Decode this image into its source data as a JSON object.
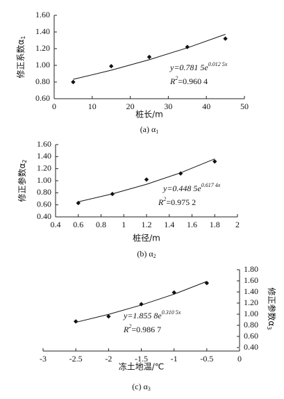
{
  "chart_data": [
    {
      "type": "scatter",
      "xlabel": "桩长/m",
      "ylabel": "修正系数α",
      "ylabel_sub": "1",
      "caption": "(a) α",
      "caption_sub": "1",
      "xlim": [
        0,
        50
      ],
      "xticks": [
        0,
        10,
        20,
        30,
        40,
        50
      ],
      "ylim": [
        0.6,
        1.6
      ],
      "yticks": [
        {
          "value": 0.6,
          "label": "0.60"
        },
        {
          "value": 0.8,
          "label": "0.80"
        },
        {
          "value": 1.0,
          "label": "1.00"
        },
        {
          "value": 1.2,
          "label": "1.20"
        },
        {
          "value": 1.4,
          "label": "1.40"
        },
        {
          "value": 1.6,
          "label": "1.60"
        }
      ],
      "y_axis_side": "left",
      "equation_base": "y=0.781 5e",
      "equation_exponent": "0.012 5x",
      "r2_symbol": "R",
      "r2_exponent": "2",
      "r2_value": "=0.960 4",
      "series": [
        {
          "marker": "diamond",
          "color": "#111111",
          "x": [
            5,
            15,
            25,
            35,
            45
          ],
          "values": [
            0.8,
            0.99,
            1.1,
            1.22,
            1.32
          ]
        },
        {
          "marker": "line",
          "color": "#111111",
          "x": [
            5,
            15,
            25,
            35,
            45
          ],
          "values": [
            0.832,
            0.942,
            1.068,
            1.21,
            1.372
          ]
        }
      ]
    },
    {
      "type": "scatter",
      "xlabel": "桩径/m",
      "ylabel": "修正参数α",
      "ylabel_sub": "2",
      "caption": "(b) α",
      "caption_sub": "2",
      "xlim": [
        0.4,
        2
      ],
      "xticks": [
        0.4,
        0.6,
        0.8,
        1,
        1.2,
        1.4,
        1.6,
        1.8,
        2
      ],
      "ylim": [
        0.4,
        1.6
      ],
      "yticks": [
        {
          "value": 0.4,
          "label": "0.40"
        },
        {
          "value": 0.6,
          "label": "0.60"
        },
        {
          "value": 0.8,
          "label": "0.80"
        },
        {
          "value": 1.0,
          "label": "1.00"
        },
        {
          "value": 1.2,
          "label": "1.20"
        },
        {
          "value": 1.4,
          "label": "1.40"
        },
        {
          "value": 1.6,
          "label": "1.60"
        }
      ],
      "y_axis_side": "left",
      "equation_base": "y=0.448 5e",
      "equation_exponent": "0.617 4x",
      "r2_symbol": "R",
      "r2_exponent": "2",
      "r2_value": "=0.975 2",
      "series": [
        {
          "marker": "diamond",
          "color": "#111111",
          "x": [
            0.6,
            0.9,
            1.2,
            1.5,
            1.8
          ],
          "values": [
            0.63,
            0.78,
            1.02,
            1.12,
            1.32
          ]
        },
        {
          "marker": "line",
          "color": "#111111",
          "x": [
            0.6,
            0.9,
            1.2,
            1.5,
            1.8
          ],
          "values": [
            0.65,
            0.782,
            0.941,
            1.132,
            1.363
          ]
        }
      ]
    },
    {
      "type": "scatter",
      "xlabel": "冻土地温/℃",
      "ylabel": "修正参数α",
      "ylabel_sub": "3",
      "caption": "(c) α",
      "caption_sub": "3",
      "xlim": [
        -3,
        0
      ],
      "xticks": [
        -3,
        -2.5,
        -2,
        -1.5,
        -1,
        -0.5,
        0
      ],
      "ylim": [
        0.4,
        1.8
      ],
      "yticks": [
        {
          "value": 0.4,
          "label": "0.40"
        },
        {
          "value": 0.6,
          "label": "0.60"
        },
        {
          "value": 0.8,
          "label": "0.80"
        },
        {
          "value": 1.0,
          "label": "1.00"
        },
        {
          "value": 1.2,
          "label": "1.20"
        },
        {
          "value": 1.4,
          "label": "1.40"
        },
        {
          "value": 1.6,
          "label": "1.60"
        },
        {
          "value": 1.8,
          "label": "1.80"
        }
      ],
      "y_axis_side": "right",
      "equation_base": "y=1.855 8e",
      "equation_exponent": "0.310 5x",
      "r2_symbol": "R",
      "r2_exponent": "2",
      "r2_value": "=0.986 7",
      "series": [
        {
          "marker": "diamond",
          "color": "#111111",
          "x": [
            -2.5,
            -2,
            -1.5,
            -1,
            -0.5
          ],
          "values": [
            0.87,
            0.96,
            1.18,
            1.39,
            1.56
          ]
        },
        {
          "marker": "line",
          "color": "#111111",
          "x": [
            -2.5,
            -2,
            -1.5,
            -1,
            -0.5
          ],
          "values": [
            0.854,
            0.997,
            1.165,
            1.36,
            1.589
          ]
        }
      ]
    }
  ]
}
